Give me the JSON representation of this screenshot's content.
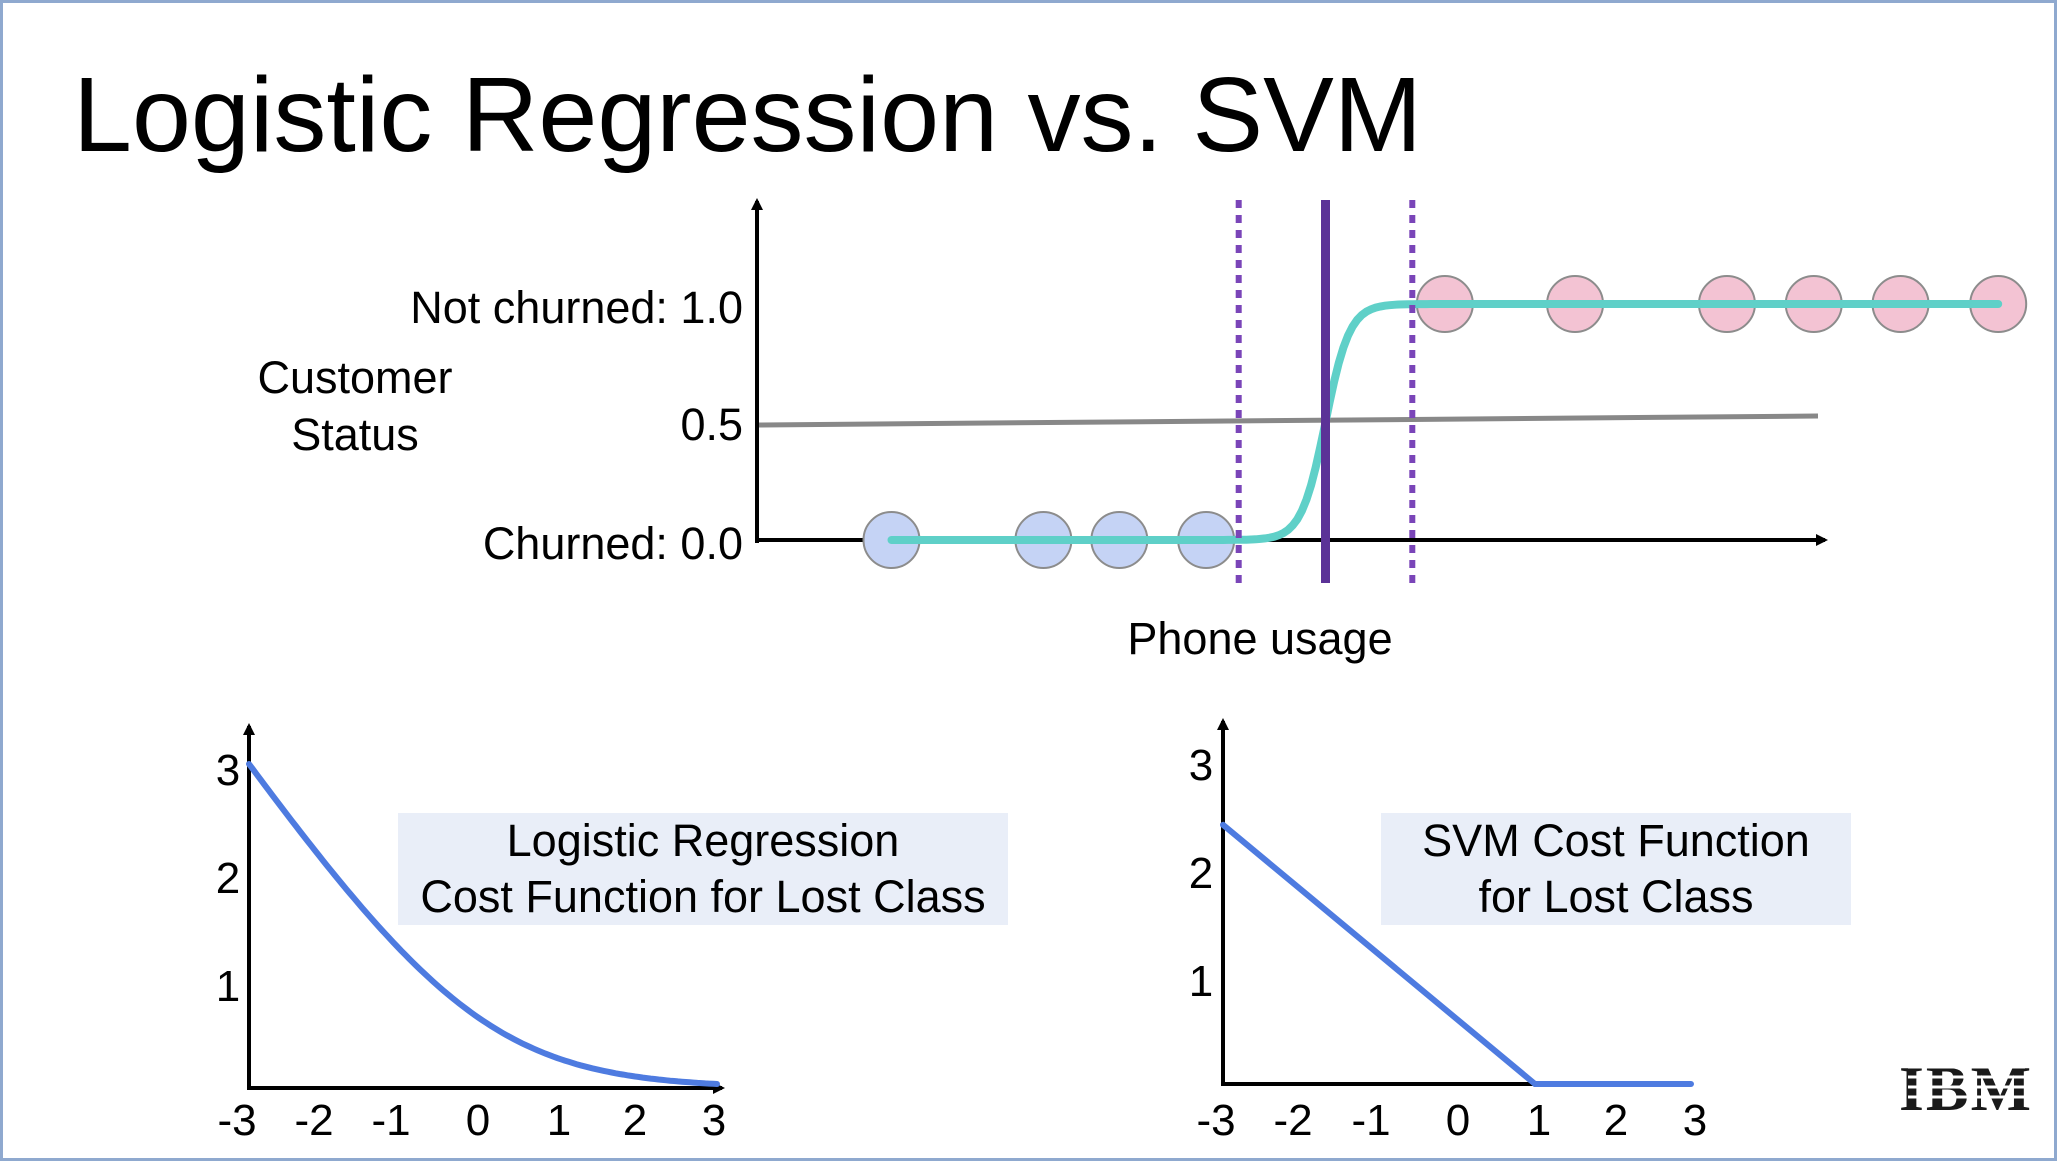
{
  "title": "Logistic Regression vs. SVM",
  "top_chart": {
    "ylabel_line1": "Customer",
    "ylabel_line2": "Status",
    "xlabel": "Phone usage",
    "tick_not_churned": "Not churned: 1.0",
    "tick_half": "0.5",
    "tick_churned": "Churned: 0.0",
    "colors": {
      "churned_points": "#c5d3f5",
      "not_churned_points": "#f3c3d3",
      "sigmoid": "#5fd0c8",
      "boundary": "#5b3297",
      "margin": "#7a45b8",
      "threshold": "#888888"
    }
  },
  "lr_cost": {
    "label_line1": "Logistic Regression",
    "label_line2": "Cost Function for Lost Class",
    "x_ticks": [
      "-3",
      "-2",
      "-1",
      "0",
      "1",
      "2",
      "3"
    ],
    "y_ticks": [
      "1",
      "2",
      "3"
    ],
    "color": "#4e7be0"
  },
  "svm_cost": {
    "label_line1": "SVM Cost Function",
    "label_line2": "for Lost Class",
    "x_ticks": [
      "-3",
      "-2",
      "-1",
      "0",
      "1",
      "2",
      "3"
    ],
    "y_ticks": [
      "1",
      "2",
      "3"
    ],
    "color": "#4e7be0"
  },
  "logo": "IBM",
  "chart_data": [
    {
      "type": "scatter",
      "title": "",
      "xlabel": "Phone usage",
      "ylabel": "Customer Status",
      "y_ticks": [
        0.0,
        0.5,
        1.0
      ],
      "series": [
        {
          "name": "",
          "x": [
            1.0,
            2.4,
            3.1,
            3.9
          ],
          "y": [
            0,
            0,
            0,
            0
          ]
        },
        {
          "name": "",
          "x": [
            6.1,
            7.3,
            8.7,
            9.5,
            10.3,
            11.2
          ],
          "y": [
            1,
            1,
            1,
            1,
            1,
            1
          ]
        }
      ],
      "decision_boundary_x": 5.0,
      "margin_x": [
        4.2,
        5.8
      ],
      "threshold_y": 0.5
    },
    {
      "type": "line",
      "title": "Logistic Regression Cost Function for Lost Class",
      "x": [
        -3,
        -2,
        -1,
        0,
        1,
        2,
        3
      ],
      "y": [
        3.0,
        2.1,
        1.3,
        0.69,
        0.31,
        0.13,
        0.05
      ],
      "xlim": [
        -3,
        3
      ],
      "ylim": [
        0,
        3
      ]
    },
    {
      "type": "line",
      "title": "SVM Cost Function for Lost Class",
      "x": [
        -3,
        1,
        3
      ],
      "y": [
        2.4,
        0,
        0
      ],
      "xlim": [
        -3,
        3
      ],
      "ylim": [
        0,
        3
      ]
    }
  ]
}
